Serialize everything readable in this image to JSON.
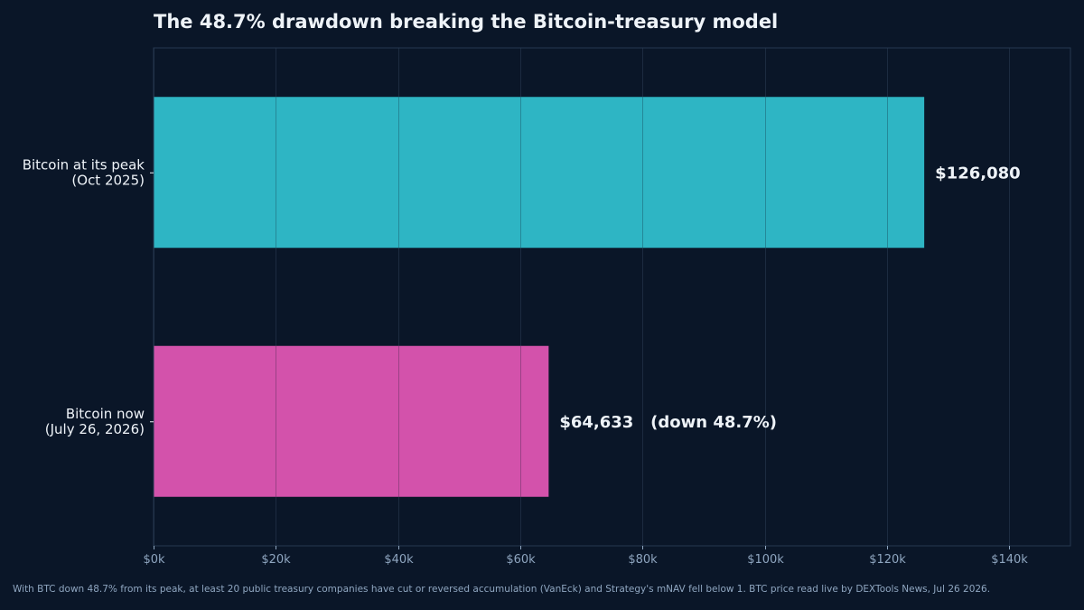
{
  "chart_data": {
    "type": "bar",
    "orientation": "horizontal",
    "title": "The 48.7% drawdown breaking the Bitcoin-treasury model",
    "categories": [
      [
        "Bitcoin at its peak",
        "(Oct 2025)"
      ],
      [
        "Bitcoin now",
        "(July 26, 2026)"
      ]
    ],
    "values": [
      126080,
      64633
    ],
    "value_labels": [
      "$126,080",
      "$64,633   (down 48.7%)"
    ],
    "xlim": [
      0,
      150000
    ],
    "x_ticks": [
      0,
      20000,
      40000,
      60000,
      80000,
      100000,
      120000,
      140000
    ],
    "x_tick_labels": [
      "$0k",
      "$20k",
      "$40k",
      "$60k",
      "$80k",
      "$100k",
      "$120k",
      "$140k"
    ],
    "xlabel": "",
    "ylabel": "",
    "grid": "x",
    "bar_colors": [
      "#2eb5c4",
      "#d352ab"
    ]
  },
  "footnote": "With BTC down 48.7% from its peak, at least 20 public treasury companies have cut or reversed accumulation (VanEck) and Strategy's mNAV fell below 1. BTC price read live by DEXTools News, Jul 26 2026.",
  "colors": {
    "background": "#0a1628",
    "frame": "#26384f",
    "grid": "#1c2b40",
    "text": "#eef3f8",
    "muted_text": "#8fa6c0"
  }
}
